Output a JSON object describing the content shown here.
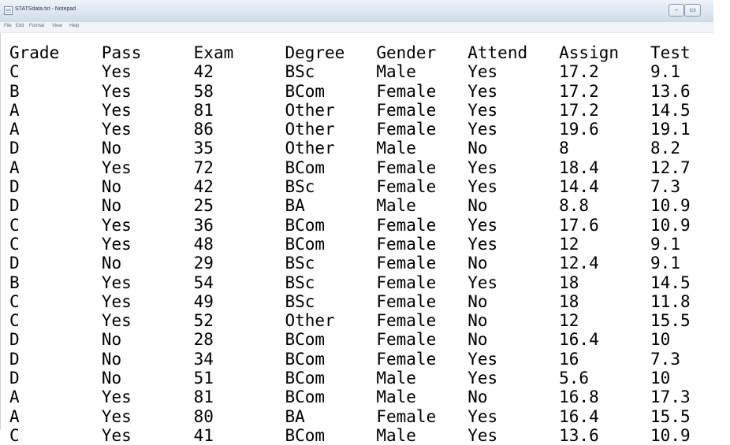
{
  "window": {
    "title": "STATSdata.txt - Notepad",
    "minimize_label": "–",
    "maximize_label": "▭"
  },
  "menu": [
    "File",
    "Edit",
    "Format",
    "View",
    "Help"
  ],
  "table": {
    "headers": [
      "Grade",
      "Pass",
      "Exam",
      "Degree",
      "Gender",
      "Attend",
      "Assign",
      "Test"
    ],
    "rows": [
      [
        "C",
        "Yes",
        "42",
        "BSc",
        "Male",
        "Yes",
        "17.2",
        "9.1"
      ],
      [
        "B",
        "Yes",
        "58",
        "BCom",
        "Female",
        "Yes",
        "17.2",
        "13.6"
      ],
      [
        "A",
        "Yes",
        "81",
        "Other",
        "Female",
        "Yes",
        "17.2",
        "14.5"
      ],
      [
        "A",
        "Yes",
        "86",
        "Other",
        "Female",
        "Yes",
        "19.6",
        "19.1"
      ],
      [
        "D",
        "No",
        "35",
        "Other",
        "Male",
        "No",
        "8",
        "8.2"
      ],
      [
        "A",
        "Yes",
        "72",
        "BCom",
        "Female",
        "Yes",
        "18.4",
        "12.7"
      ],
      [
        "D",
        "No",
        "42",
        "BSc",
        "Female",
        "Yes",
        "14.4",
        "7.3"
      ],
      [
        "D",
        "No",
        "25",
        "BA",
        "Male",
        "No",
        "8.8",
        "10.9"
      ],
      [
        "C",
        "Yes",
        "36",
        "BCom",
        "Female",
        "Yes",
        "17.6",
        "10.9"
      ],
      [
        "C",
        "Yes",
        "48",
        "BCom",
        "Female",
        "Yes",
        "12",
        "9.1"
      ],
      [
        "D",
        "No",
        "29",
        "BSc",
        "Female",
        "No",
        "12.4",
        "9.1"
      ],
      [
        "B",
        "Yes",
        "54",
        "BSc",
        "Female",
        "Yes",
        "18",
        "14.5"
      ],
      [
        "C",
        "Yes",
        "49",
        "BSc",
        "Female",
        "No",
        "18",
        "11.8"
      ],
      [
        "C",
        "Yes",
        "52",
        "Other",
        "Female",
        "No",
        "12",
        "15.5"
      ],
      [
        "D",
        "No",
        "28",
        "BCom",
        "Female",
        "No",
        "16.4",
        "10"
      ],
      [
        "D",
        "No",
        "34",
        "BCom",
        "Female",
        "Yes",
        "16",
        "7.3"
      ],
      [
        "D",
        "No",
        "51",
        "BCom",
        "Male",
        "Yes",
        "5.6",
        "10"
      ],
      [
        "A",
        "Yes",
        "81",
        "BCom",
        "Male",
        "No",
        "16.8",
        "17.3"
      ],
      [
        "A",
        "Yes",
        "80",
        "BA",
        "Female",
        "Yes",
        "16.4",
        "15.5"
      ],
      [
        "C",
        "Yes",
        "41",
        "BCom",
        "Male",
        "Yes",
        "13.6",
        "10.9"
      ]
    ]
  }
}
